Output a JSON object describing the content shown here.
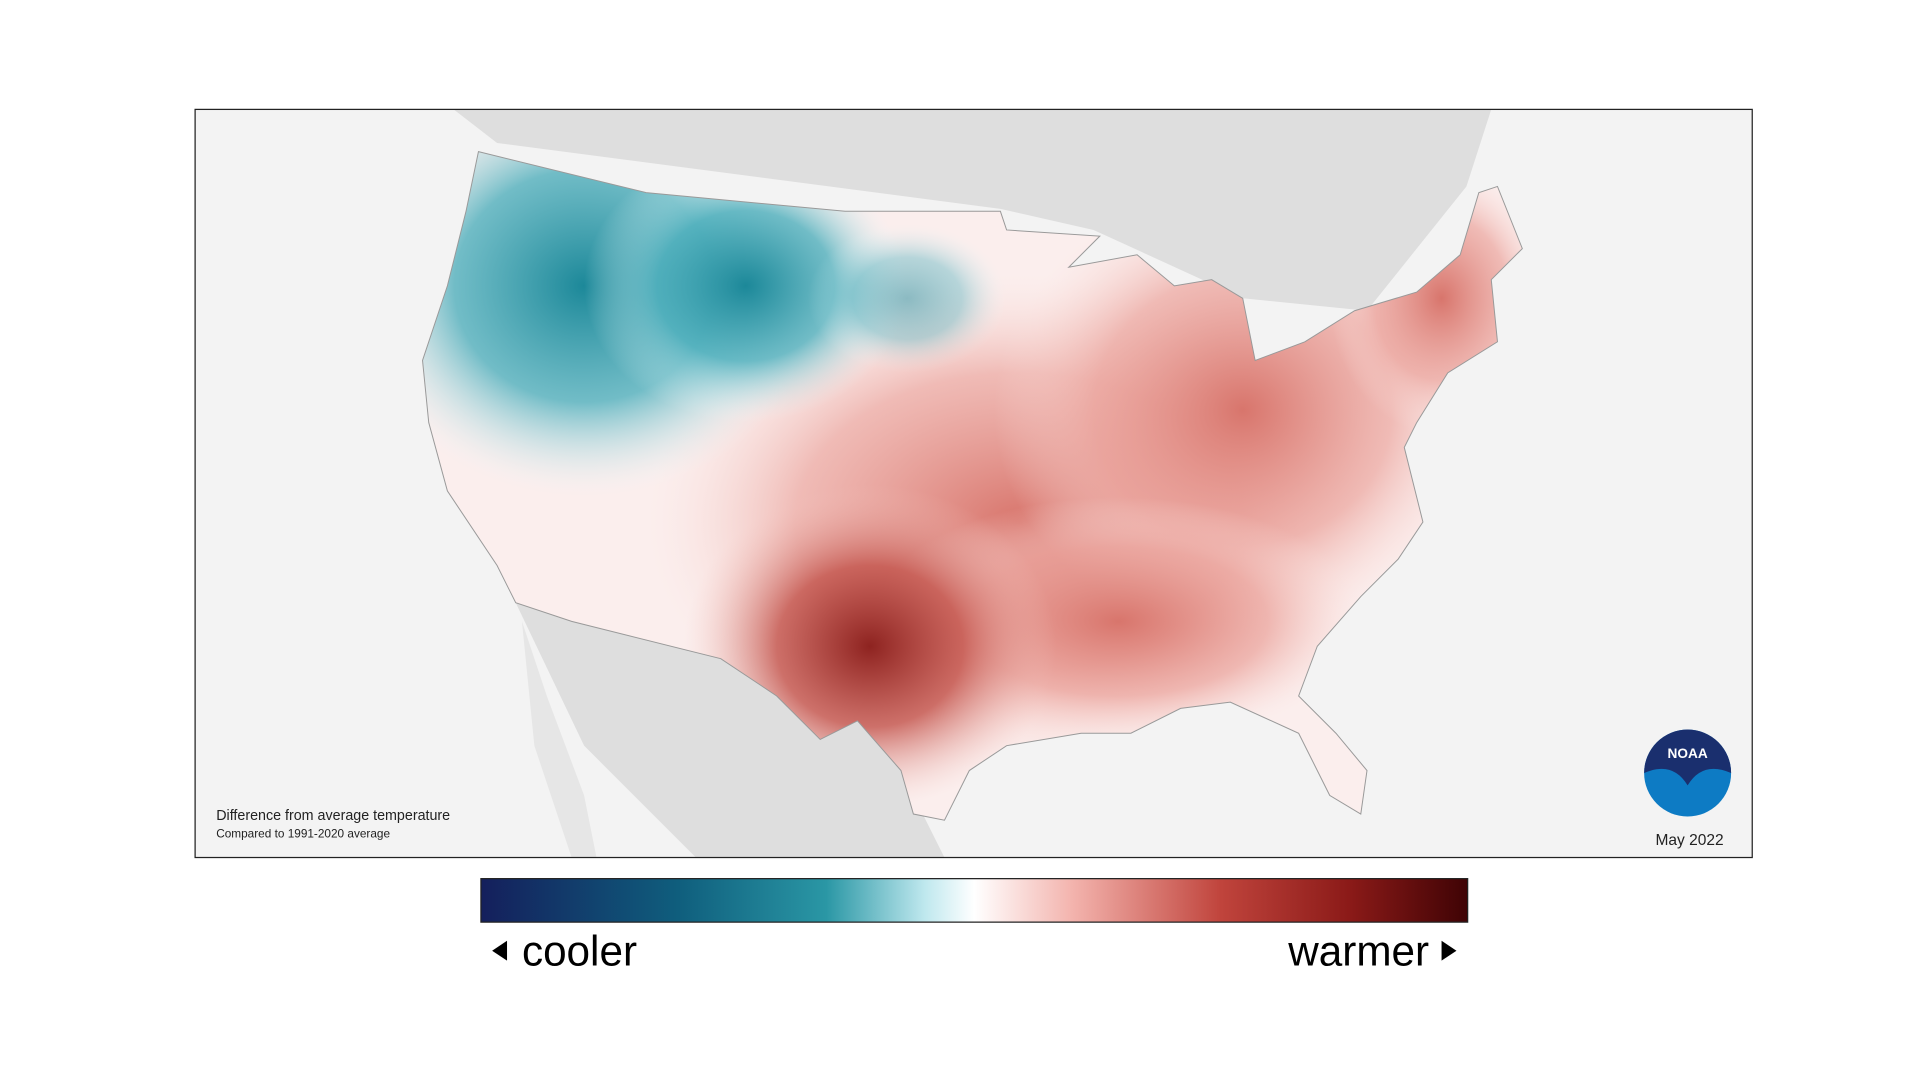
{
  "map": {
    "caption": "Difference from average temperature",
    "subcaption": "Compared to 1991-2020 average",
    "date": "May 2022",
    "logo": "NOAA"
  },
  "legend": {
    "low_label": "cooler",
    "high_label": "warmer"
  }
}
